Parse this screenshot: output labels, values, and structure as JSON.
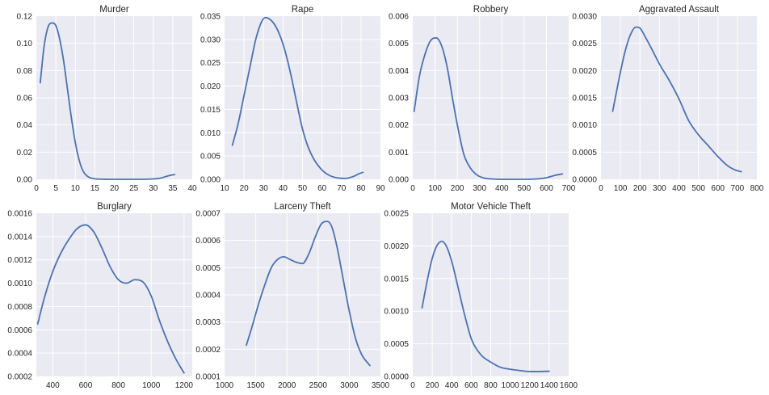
{
  "colors": {
    "line": "#4C72B0",
    "panel_background": "#EAEAF2",
    "grid": "#FFFFFF",
    "text": "#262626"
  },
  "chart_data": [
    {
      "type": "line",
      "title": "Murder",
      "grid": true,
      "xlim": [
        0,
        40
      ],
      "ylim": [
        0,
        0.12
      ],
      "xticks": [
        "0",
        "5",
        "10",
        "15",
        "20",
        "25",
        "30",
        "35",
        "40"
      ],
      "yticks": [
        "0.00",
        "0.02",
        "0.04",
        "0.06",
        "0.08",
        "0.10",
        "0.12"
      ],
      "series": [
        {
          "x": [
            1,
            2,
            3,
            4,
            5,
            6,
            7,
            8,
            9,
            10,
            11,
            12,
            13,
            14,
            15,
            17,
            20,
            25,
            30,
            32,
            34,
            35.5
          ],
          "y": [
            0.071,
            0.098,
            0.112,
            0.115,
            0.113,
            0.103,
            0.087,
            0.066,
            0.045,
            0.027,
            0.014,
            0.006,
            0.0025,
            0.001,
            0.0004,
            0.0001,
            0.0,
            0.0,
            0.0003,
            0.001,
            0.0027,
            0.0035
          ]
        }
      ]
    },
    {
      "type": "line",
      "title": "Rape",
      "grid": true,
      "xlim": [
        10,
        90
      ],
      "ylim": [
        0,
        0.035
      ],
      "xticks": [
        "10",
        "20",
        "30",
        "40",
        "50",
        "60",
        "70",
        "80",
        "90"
      ],
      "yticks": [
        "0.000",
        "0.005",
        "0.010",
        "0.015",
        "0.020",
        "0.025",
        "0.030",
        "0.035"
      ],
      "series": [
        {
          "x": [
            14,
            17,
            20,
            23,
            26,
            29,
            31,
            33,
            35,
            38,
            41,
            44,
            47,
            50,
            53,
            56,
            60,
            64,
            68,
            72,
            76,
            79,
            81
          ],
          "y": [
            0.0073,
            0.012,
            0.018,
            0.024,
            0.03,
            0.0338,
            0.0347,
            0.0344,
            0.0336,
            0.0313,
            0.0276,
            0.0225,
            0.0165,
            0.0108,
            0.0068,
            0.0042,
            0.002,
            0.0008,
            0.0003,
            0.0002,
            0.0006,
            0.0012,
            0.0015
          ]
        }
      ]
    },
    {
      "type": "line",
      "title": "Robbery",
      "grid": true,
      "xlim": [
        0,
        700
      ],
      "ylim": [
        0,
        0.006
      ],
      "xticks": [
        "0",
        "100",
        "200",
        "300",
        "400",
        "500",
        "600",
        "700"
      ],
      "yticks": [
        "0.000",
        "0.001",
        "0.002",
        "0.003",
        "0.004",
        "0.005",
        "0.006"
      ],
      "series": [
        {
          "x": [
            6,
            30,
            55,
            80,
            105,
            130,
            155,
            180,
            205,
            230,
            260,
            290,
            320,
            360,
            400,
            450,
            500,
            550,
            600,
            640,
            672
          ],
          "y": [
            0.0025,
            0.0038,
            0.0046,
            0.0051,
            0.0052,
            0.0049,
            0.0041,
            0.0029,
            0.0018,
            0.0009,
            0.0004,
            0.00015,
            5e-05,
            1e-05,
            0.0,
            0.0,
            0.0,
            1e-05,
            6e-05,
            0.00015,
            0.0002
          ]
        }
      ]
    },
    {
      "type": "line",
      "title": "Aggravated Assault",
      "grid": true,
      "xlim": [
        0,
        800
      ],
      "ylim": [
        0,
        0.003
      ],
      "xticks": [
        "0",
        "100",
        "200",
        "300",
        "400",
        "500",
        "600",
        "700",
        "800"
      ],
      "yticks": [
        "0.0000",
        "0.0005",
        "0.0010",
        "0.0015",
        "0.0020",
        "0.0025",
        "0.0030"
      ],
      "series": [
        {
          "x": [
            60,
            90,
            120,
            150,
            180,
            200,
            230,
            260,
            300,
            350,
            400,
            450,
            500,
            550,
            600,
            650,
            690,
            720
          ],
          "y": [
            0.00125,
            0.0018,
            0.0023,
            0.00265,
            0.0028,
            0.00278,
            0.0026,
            0.0024,
            0.00212,
            0.00182,
            0.00148,
            0.00108,
            0.00082,
            0.00062,
            0.00042,
            0.00025,
            0.00017,
            0.00014
          ]
        }
      ]
    },
    {
      "type": "line",
      "title": "Burglary",
      "grid": true,
      "xlim": [
        300,
        1250
      ],
      "ylim": [
        0.0002,
        0.0016
      ],
      "xticks": [
        "400",
        "600",
        "800",
        "1000",
        "1200"
      ],
      "yticks": [
        "0.0002",
        "0.0004",
        "0.0006",
        "0.0008",
        "0.0010",
        "0.0012",
        "0.0014",
        "0.0016"
      ],
      "series": [
        {
          "x": [
            308,
            350,
            400,
            450,
            500,
            550,
            600,
            650,
            700,
            750,
            800,
            850,
            900,
            950,
            1000,
            1050,
            1100,
            1150,
            1200
          ],
          "y": [
            0.00065,
            0.00088,
            0.0011,
            0.00126,
            0.00138,
            0.00147,
            0.0015,
            0.00144,
            0.0013,
            0.00114,
            0.00103,
            0.001,
            0.00103,
            0.00101,
            0.00089,
            0.00068,
            0.0005,
            0.00035,
            0.00023
          ]
        }
      ]
    },
    {
      "type": "line",
      "title": "Larceny Theft",
      "grid": true,
      "xlim": [
        1000,
        3500
      ],
      "ylim": [
        0.0001,
        0.0007
      ],
      "xticks": [
        "1000",
        "1500",
        "2000",
        "2500",
        "3000",
        "3500"
      ],
      "yticks": [
        "0.0001",
        "0.0002",
        "0.0003",
        "0.0004",
        "0.0005",
        "0.0006",
        "0.0007"
      ],
      "series": [
        {
          "x": [
            1350,
            1450,
            1550,
            1650,
            1750,
            1850,
            1950,
            2050,
            2150,
            2250,
            2350,
            2450,
            2550,
            2650,
            2720,
            2800,
            2900,
            3000,
            3100,
            3200,
            3330
          ],
          "y": [
            0.000215,
            0.00029,
            0.00037,
            0.00044,
            0.0005,
            0.00053,
            0.00054,
            0.00053,
            0.00052,
            0.000515,
            0.00055,
            0.00061,
            0.00066,
            0.00067,
            0.00065,
            0.00058,
            0.00046,
            0.00034,
            0.00024,
            0.00018,
            0.00014
          ]
        }
      ]
    },
    {
      "type": "line",
      "title": "Motor Vehicle Theft",
      "grid": true,
      "xlim": [
        0,
        1600
      ],
      "ylim": [
        0,
        0.0025
      ],
      "xticks": [
        "0",
        "200",
        "400",
        "600",
        "800",
        "1000",
        "1200",
        "1400",
        "1600"
      ],
      "yticks": [
        "0.0000",
        "0.0005",
        "0.0010",
        "0.0015",
        "0.0020",
        "0.0025"
      ],
      "series": [
        {
          "x": [
            95,
            150,
            200,
            250,
            300,
            350,
            400,
            450,
            500,
            550,
            600,
            700,
            800,
            900,
            1000,
            1100,
            1200,
            1300,
            1400
          ],
          "y": [
            0.00105,
            0.00148,
            0.00181,
            0.00201,
            0.00207,
            0.00198,
            0.00176,
            0.00146,
            0.00114,
            0.00084,
            0.00058,
            0.00033,
            0.00022,
            0.00014,
            0.00011,
            9e-05,
            7.5e-05,
            7.5e-05,
            8e-05
          ]
        }
      ]
    }
  ]
}
